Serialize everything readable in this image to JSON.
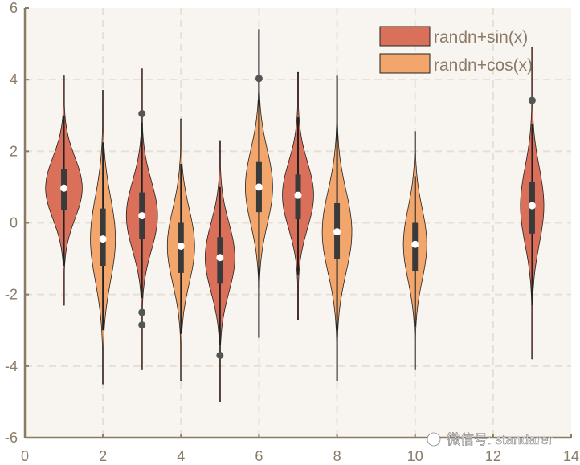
{
  "chart_data": {
    "type": "violin",
    "xlim": [
      0,
      14
    ],
    "ylim": [
      -6,
      6
    ],
    "xticks": [
      "0",
      "2",
      "4",
      "6",
      "8",
      "10",
      "12",
      "14"
    ],
    "yticks": [
      "-6",
      "-4",
      "-2",
      "0",
      "2",
      "4",
      "6"
    ],
    "grid": true,
    "legend_position": "top-right",
    "series": [
      {
        "name": "randn+sin(x)",
        "color": "#db705a"
      },
      {
        "name": "randn+cos(x)",
        "color": "#f2a66b"
      }
    ],
    "violins": [
      {
        "x": 1,
        "series": 0,
        "min": -2.3,
        "max": 4.1,
        "q1": 0.35,
        "q3": 1.5,
        "median": 0.97,
        "whisker": [
          -1.2,
          3.0
        ],
        "outliers": [],
        "peak_halfwidth": 0.47
      },
      {
        "x": 2,
        "series": 1,
        "min": -4.5,
        "max": 3.7,
        "q1": -1.2,
        "q3": 0.4,
        "median": -0.45,
        "whisker": [
          -3.0,
          2.25
        ],
        "outliers": [],
        "peak_halfwidth": 0.32
      },
      {
        "x": 3,
        "series": 0,
        "min": -4.1,
        "max": 4.3,
        "q1": -0.45,
        "q3": 0.85,
        "median": 0.2,
        "whisker": [
          -2.1,
          2.8
        ],
        "outliers": [
          3.05,
          -2.5,
          -2.85
        ],
        "peak_halfwidth": 0.4
      },
      {
        "x": 4,
        "series": 1,
        "min": -4.4,
        "max": 2.9,
        "q1": -1.4,
        "q3": 0.0,
        "median": -0.65,
        "whisker": [
          -3.1,
          1.65
        ],
        "outliers": [],
        "peak_halfwidth": 0.35
      },
      {
        "x": 5,
        "series": 0,
        "min": -5.0,
        "max": 2.3,
        "q1": -1.7,
        "q3": -0.4,
        "median": -0.97,
        "whisker": [
          -3.4,
          1.0
        ],
        "outliers": [
          -3.7
        ],
        "peak_halfwidth": 0.38
      },
      {
        "x": 6,
        "series": 1,
        "min": -3.2,
        "max": 5.4,
        "q1": 0.3,
        "q3": 1.7,
        "median": 1.0,
        "whisker": [
          -1.8,
          3.45
        ],
        "outliers": [
          4.03
        ],
        "peak_halfwidth": 0.35
      },
      {
        "x": 7,
        "series": 0,
        "min": -2.7,
        "max": 4.2,
        "q1": 0.1,
        "q3": 1.35,
        "median": 0.77,
        "whisker": [
          -1.45,
          2.95
        ],
        "outliers": [],
        "peak_halfwidth": 0.4
      },
      {
        "x": 8,
        "series": 1,
        "min": -4.4,
        "max": 4.1,
        "q1": -1.0,
        "q3": 0.55,
        "median": -0.25,
        "whisker": [
          -3.0,
          2.75
        ],
        "outliers": [],
        "peak_halfwidth": 0.38
      },
      {
        "x": 10,
        "series": 1,
        "min": -4.1,
        "max": 2.55,
        "q1": -1.35,
        "q3": 0.0,
        "median": -0.6,
        "whisker": [
          -2.9,
          1.3
        ],
        "outliers": [],
        "peak_halfwidth": 0.3
      },
      {
        "x": 13,
        "series": 0,
        "min": -3.8,
        "max": 4.9,
        "q1": -0.3,
        "q3": 1.15,
        "median": 0.48,
        "whisker": [
          -2.3,
          2.75
        ],
        "outliers": [
          3.42
        ],
        "peak_halfwidth": 0.3
      }
    ]
  },
  "watermark": "微信号: standarer"
}
